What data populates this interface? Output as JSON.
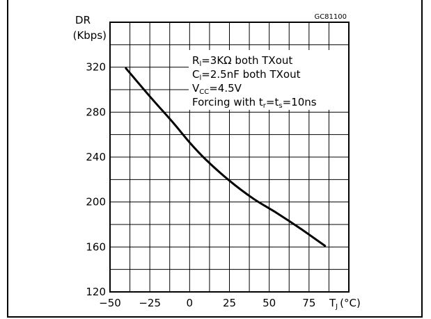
{
  "chart_data": {
    "type": "line",
    "ylabel_line1": "DR",
    "ylabel_line2": "(Kbps)",
    "code": "GC81100",
    "xlim": [
      -50,
      100
    ],
    "ylim": [
      120,
      360
    ],
    "x_ticks": [
      -50,
      -25,
      0,
      25,
      50,
      75
    ],
    "y_ticks": [
      120,
      160,
      200,
      240,
      280,
      320
    ],
    "x_tick_labels": [
      "−50",
      "−25",
      "0",
      "25",
      "50",
      "75"
    ],
    "y_tick_labels": [
      "120",
      "160",
      "200",
      "240",
      "280",
      "320"
    ],
    "xlabel": {
      "main": "T",
      "sub": "J",
      "unit": "(°C)"
    },
    "grid": true,
    "series": [
      {
        "x": [
          -40,
          -25,
          -10,
          0,
          10,
          25,
          40,
          55,
          70,
          85
        ],
        "y": [
          319,
          294,
          270,
          253,
          238,
          219,
          203,
          190,
          176,
          161
        ]
      }
    ],
    "annotations": [
      {
        "main": "R",
        "sub": "l",
        "rest": "=3KΩ  both  TXout"
      },
      {
        "main": "C",
        "sub": "l",
        "rest": "=2.5nF both  TXout"
      },
      {
        "main": "V",
        "sub": "CC",
        "rest": "=4.5V"
      },
      {
        "prefix": "Forcing  with  t",
        "sub1": "r",
        "mid": "=t",
        "sub2": "s",
        "suffix": "=10ns"
      }
    ]
  }
}
